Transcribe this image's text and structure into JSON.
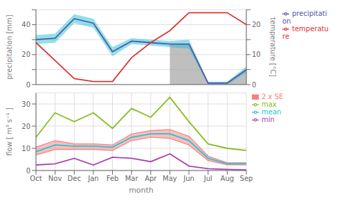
{
  "chart_data": [
    {
      "type": "line",
      "categories": [
        "Oct",
        "Nov",
        "Dec",
        "Jan",
        "Feb",
        "Mar",
        "Apr",
        "May",
        "Jun",
        "Jul",
        "Aug",
        "Sep"
      ],
      "tick_labels": "y",
      "ylabel": "precipitation [mm]",
      "y2label": "temperature [°C]",
      "ylim": [
        0,
        50
      ],
      "yticks": [
        0,
        {
          "value": 10,
          "label": ""
        },
        20,
        {
          "value": 30,
          "label": ""
        },
        40,
        {
          "value": 50,
          "label": ""
        }
      ],
      "y2lim": [
        0,
        25
      ],
      "y2ticks": [
        0,
        {
          "value": 5,
          "label": ""
        },
        10,
        {
          "value": 15,
          "label": ""
        },
        20,
        {
          "value": 25,
          "label": ""
        }
      ],
      "grid": true,
      "legend": "upper right",
      "series": [
        {
          "type": "area",
          "color": "#aaaaaa",
          "values": [
            null,
            null,
            null,
            null,
            null,
            null,
            null,
            27,
            27,
            1,
            1,
            10
          ]
        },
        {
          "type": "band",
          "color": "#22c4d4",
          "lower": [
            27,
            28,
            41,
            38,
            19,
            27,
            26,
            25,
            24,
            0,
            0,
            8
          ],
          "upper": [
            33,
            34,
            47,
            44,
            25,
            31,
            30,
            29,
            30,
            2,
            2,
            12
          ]
        },
        {
          "name": "precipitation",
          "type": "line",
          "color": "#5555aa",
          "values": [
            30,
            31,
            44,
            41,
            22,
            29,
            28,
            27,
            27,
            1,
            1,
            10
          ]
        },
        {
          "name": "temperature",
          "type": "line",
          "color": "#dd3333",
          "axis": "y2",
          "values": [
            14,
            8,
            2,
            1,
            1,
            9,
            14,
            18,
            24,
            24,
            24,
            20
          ]
        }
      ]
    },
    {
      "type": "line",
      "categories": [
        "Oct",
        "Nov",
        "Dec",
        "Jan",
        "Feb",
        "Mar",
        "Apr",
        "May",
        "Jun",
        "Jul",
        "Aug",
        "Sep"
      ],
      "xlabel": "month",
      "ylabel": "flow  [ m³ s⁻¹ ]",
      "ylim": [
        0,
        35
      ],
      "yticks": [
        0,
        10,
        20,
        30
      ],
      "grid": true,
      "legend": "upper right",
      "series": [
        {
          "name": "2 x SE",
          "type": "band",
          "color": "#f48080",
          "line_style": "solid",
          "lower": [
            7.0,
            9.5,
            9.5,
            9.5,
            9.0,
            13.5,
            15.0,
            14.5,
            11.5,
            4.5,
            2.5,
            2.5
          ],
          "upper": [
            10.5,
            13.5,
            12.0,
            12.0,
            11.5,
            16.5,
            18.0,
            18.5,
            15.5,
            6.5,
            3.5,
            3.5
          ]
        },
        {
          "name": "max",
          "type": "line",
          "color": "#88bb22",
          "values": [
            15,
            26,
            22,
            26,
            19,
            28,
            24,
            33,
            22,
            12,
            10,
            9
          ]
        },
        {
          "name": "mean",
          "type": "line",
          "color": "#22c4d4",
          "values": [
            8.5,
            11.5,
            11.0,
            11.0,
            10.5,
            15.0,
            16.5,
            16.5,
            13.5,
            5.5,
            3.0,
            3.0
          ]
        },
        {
          "name": "min",
          "type": "line",
          "color": "#aa44aa",
          "values": [
            2.5,
            3.0,
            5.5,
            2.5,
            6.0,
            5.5,
            4.0,
            7.5,
            2.0,
            0.8,
            0.5,
            0.3
          ]
        }
      ]
    }
  ]
}
